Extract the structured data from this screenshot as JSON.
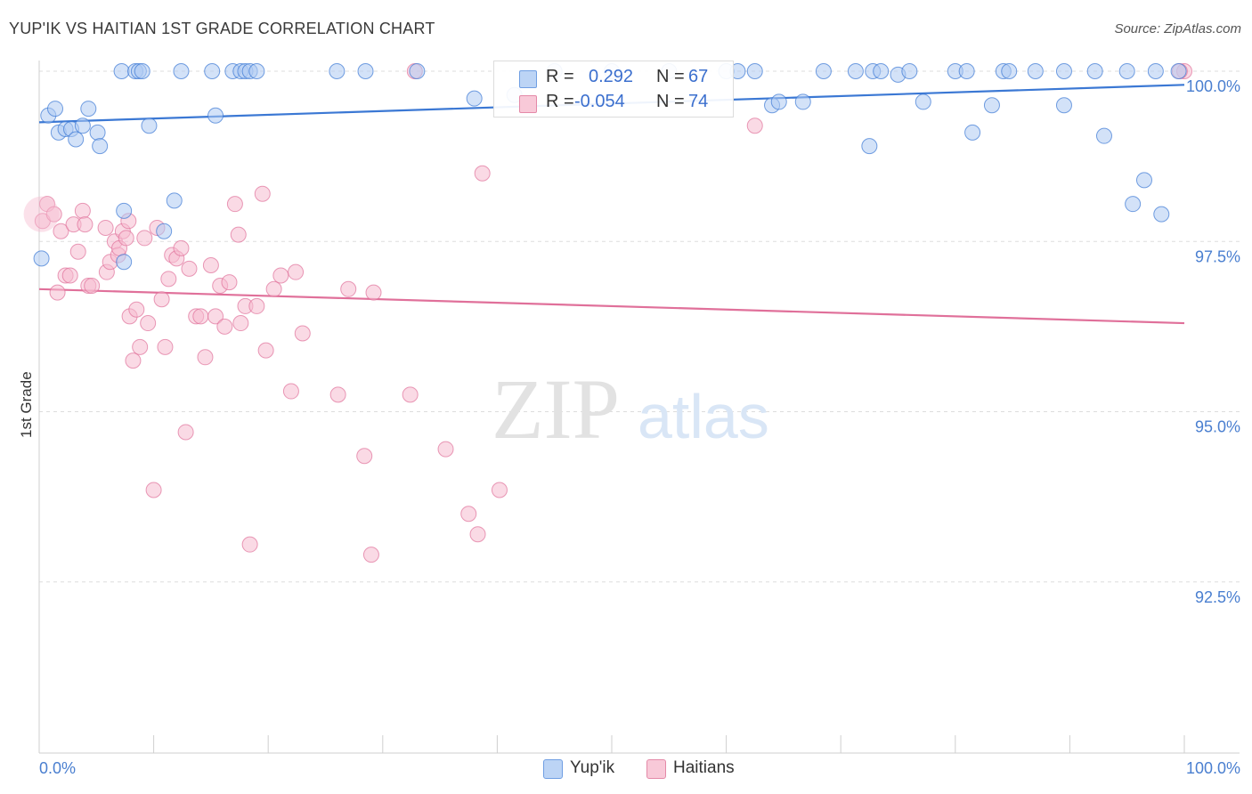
{
  "header": {
    "title": "YUP'IK VS HAITIAN 1ST GRADE CORRELATION CHART",
    "source": "Source: ZipAtlas.com"
  },
  "watermark": {
    "zip": "ZIP",
    "atlas": "atlas"
  },
  "colors": {
    "blue": "#3b78d4",
    "blue_fill": "#aecbf2",
    "pink": "#e0709a",
    "pink_fill": "#f6bcd0",
    "axis_text": "#4a7fd0",
    "grid": "#dddddd"
  },
  "stats": {
    "rows": [
      {
        "series": "Yup'ik",
        "r_label": "R =",
        "r_value": "0.292",
        "n_label": "N =",
        "n_value": "67"
      },
      {
        "series": "Haitians",
        "r_label": "R =",
        "r_value": "-0.054",
        "n_label": "N =",
        "n_value": "74"
      }
    ]
  },
  "legend": {
    "items": [
      "Yup'ik",
      "Haitians"
    ]
  },
  "chart_data": {
    "type": "scatter",
    "title": "YUP'IK VS HAITIAN 1ST GRADE CORRELATION CHART",
    "xlabel": "",
    "ylabel": "1st Grade",
    "xlim": [
      0,
      100
    ],
    "ylim": [
      90.5,
      100.5
    ],
    "x_tick_labels": [
      "0.0%",
      "100.0%"
    ],
    "y_ticks": [
      100.0,
      97.5,
      95.0,
      92.5
    ],
    "y_tick_labels": [
      "100.0%",
      "97.5%",
      "95.0%",
      "92.5%"
    ],
    "grid": true,
    "legend_position": "bottom-center",
    "series": [
      {
        "name": "Yup'ik",
        "trend": {
          "x": [
            0,
            100
          ],
          "y": [
            99.25,
            99.8
          ]
        },
        "points": [
          [
            0.2,
            97.25
          ],
          [
            0.8,
            99.35
          ],
          [
            1.4,
            99.45
          ],
          [
            1.7,
            99.1
          ],
          [
            2.3,
            99.15
          ],
          [
            2.8,
            99.15
          ],
          [
            3.2,
            99.0
          ],
          [
            3.8,
            99.2
          ],
          [
            4.3,
            99.45
          ],
          [
            5.1,
            99.1
          ],
          [
            5.3,
            98.9
          ],
          [
            7.2,
            100.0
          ],
          [
            7.4,
            97.2
          ],
          [
            7.4,
            97.95
          ],
          [
            8.4,
            100.0
          ],
          [
            8.7,
            100.0
          ],
          [
            9.0,
            100.0
          ],
          [
            9.6,
            99.2
          ],
          [
            10.9,
            97.65
          ],
          [
            11.8,
            98.1
          ],
          [
            12.4,
            100.0
          ],
          [
            15.1,
            100.0
          ],
          [
            15.4,
            99.35
          ],
          [
            16.9,
            100.0
          ],
          [
            17.6,
            100.0
          ],
          [
            18.0,
            100.0
          ],
          [
            18.4,
            100.0
          ],
          [
            19.0,
            100.0
          ],
          [
            26.0,
            100.0
          ],
          [
            28.5,
            100.0
          ],
          [
            33.0,
            100.0
          ],
          [
            38.0,
            99.6
          ],
          [
            41.5,
            99.65
          ],
          [
            45.0,
            100.0
          ],
          [
            50.0,
            100.0
          ],
          [
            55.0,
            100.0
          ],
          [
            60.0,
            100.0
          ],
          [
            61.0,
            100.0
          ],
          [
            62.5,
            100.0
          ],
          [
            64.0,
            99.5
          ],
          [
            64.6,
            99.55
          ],
          [
            66.7,
            99.55
          ],
          [
            68.5,
            100.0
          ],
          [
            71.3,
            100.0
          ],
          [
            72.8,
            100.0
          ],
          [
            73.5,
            100.0
          ],
          [
            75.0,
            99.95
          ],
          [
            72.5,
            98.9
          ],
          [
            76.0,
            100.0
          ],
          [
            77.2,
            99.55
          ],
          [
            80.0,
            100.0
          ],
          [
            81.0,
            100.0
          ],
          [
            81.5,
            99.1
          ],
          [
            83.2,
            99.5
          ],
          [
            84.2,
            100.0
          ],
          [
            84.7,
            100.0
          ],
          [
            87.0,
            100.0
          ],
          [
            89.5,
            100.0
          ],
          [
            89.5,
            99.5
          ],
          [
            92.2,
            100.0
          ],
          [
            93.0,
            99.05
          ],
          [
            95.0,
            100.0
          ],
          [
            95.5,
            98.05
          ],
          [
            96.5,
            98.4
          ],
          [
            97.5,
            100.0
          ],
          [
            98.0,
            97.9
          ],
          [
            99.5,
            100.0
          ]
        ]
      },
      {
        "name": "Haitians",
        "trend": {
          "x": [
            0,
            100
          ],
          "y": [
            96.8,
            96.3
          ]
        },
        "points": [
          [
            0.3,
            97.8
          ],
          [
            0.7,
            98.05
          ],
          [
            1.3,
            97.9
          ],
          [
            1.6,
            96.75
          ],
          [
            1.9,
            97.65
          ],
          [
            2.3,
            97.0
          ],
          [
            2.7,
            97.0
          ],
          [
            3.0,
            97.75
          ],
          [
            3.4,
            97.35
          ],
          [
            3.8,
            97.95
          ],
          [
            4.0,
            97.75
          ],
          [
            4.3,
            96.85
          ],
          [
            4.6,
            96.85
          ],
          [
            5.8,
            97.7
          ],
          [
            5.9,
            97.05
          ],
          [
            6.2,
            97.2
          ],
          [
            6.6,
            97.5
          ],
          [
            6.9,
            97.3
          ],
          [
            7.0,
            97.4
          ],
          [
            7.3,
            97.65
          ],
          [
            7.6,
            97.55
          ],
          [
            7.8,
            97.8
          ],
          [
            7.9,
            96.4
          ],
          [
            8.2,
            95.75
          ],
          [
            8.5,
            96.5
          ],
          [
            8.8,
            95.95
          ],
          [
            9.2,
            97.55
          ],
          [
            9.5,
            96.3
          ],
          [
            10.0,
            93.85
          ],
          [
            10.3,
            97.7
          ],
          [
            10.7,
            96.65
          ],
          [
            11.0,
            95.95
          ],
          [
            11.3,
            96.95
          ],
          [
            11.6,
            97.3
          ],
          [
            12.0,
            97.25
          ],
          [
            12.4,
            97.4
          ],
          [
            12.8,
            94.7
          ],
          [
            13.1,
            97.1
          ],
          [
            13.7,
            96.4
          ],
          [
            14.1,
            96.4
          ],
          [
            14.5,
            95.8
          ],
          [
            15.0,
            97.15
          ],
          [
            15.4,
            96.4
          ],
          [
            15.8,
            96.85
          ],
          [
            16.2,
            96.25
          ],
          [
            16.6,
            96.9
          ],
          [
            17.1,
            98.05
          ],
          [
            17.4,
            97.6
          ],
          [
            17.6,
            96.3
          ],
          [
            18.0,
            96.55
          ],
          [
            18.4,
            93.05
          ],
          [
            19.0,
            96.55
          ],
          [
            19.5,
            98.2
          ],
          [
            19.8,
            95.9
          ],
          [
            20.5,
            96.8
          ],
          [
            21.1,
            97.0
          ],
          [
            22.0,
            95.3
          ],
          [
            22.4,
            97.05
          ],
          [
            23.0,
            96.15
          ],
          [
            26.1,
            95.25
          ],
          [
            27.0,
            96.8
          ],
          [
            28.4,
            94.35
          ],
          [
            29.0,
            92.9
          ],
          [
            29.2,
            96.75
          ],
          [
            32.4,
            95.25
          ],
          [
            32.8,
            100.0
          ],
          [
            35.5,
            94.45
          ],
          [
            37.5,
            93.5
          ],
          [
            38.3,
            93.2
          ],
          [
            38.7,
            98.5
          ],
          [
            40.2,
            93.85
          ],
          [
            62.5,
            99.2
          ],
          [
            100.0,
            100.0
          ],
          [
            99.6,
            100.0
          ]
        ]
      }
    ]
  }
}
